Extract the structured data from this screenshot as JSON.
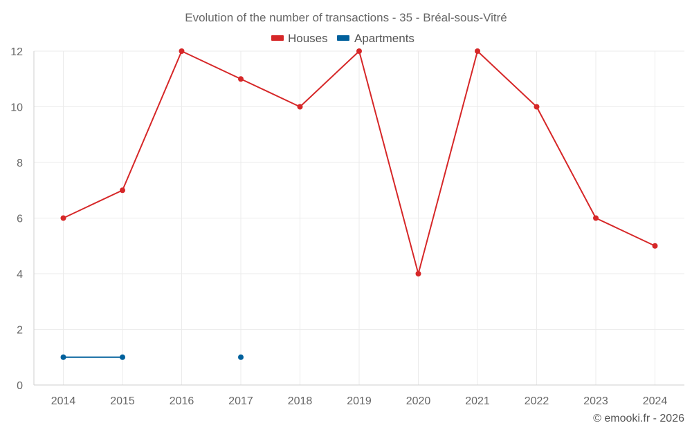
{
  "chart_data": {
    "type": "line",
    "title": "Evolution of the number of transactions - 35 - Bréal-sous-Vitré",
    "categories": [
      "2014",
      "2015",
      "2016",
      "2017",
      "2018",
      "2019",
      "2020",
      "2021",
      "2022",
      "2023",
      "2024"
    ],
    "series": [
      {
        "name": "Houses",
        "color": "#d62728",
        "values": [
          6,
          7,
          12,
          11,
          10,
          12,
          4,
          12,
          10,
          6,
          5
        ]
      },
      {
        "name": "Apartments",
        "color": "#00609c",
        "values": [
          1,
          1,
          null,
          1,
          null,
          null,
          null,
          null,
          null,
          null,
          null
        ]
      }
    ],
    "y_ticks": [
      "0",
      "2",
      "4",
      "6",
      "8",
      "10",
      "12"
    ],
    "ylim": [
      0,
      12
    ],
    "xlabel": "",
    "ylabel": "",
    "grid": true,
    "legend_position": "top-center"
  },
  "footer": {
    "credit": "© emooki.fr - 2026"
  }
}
